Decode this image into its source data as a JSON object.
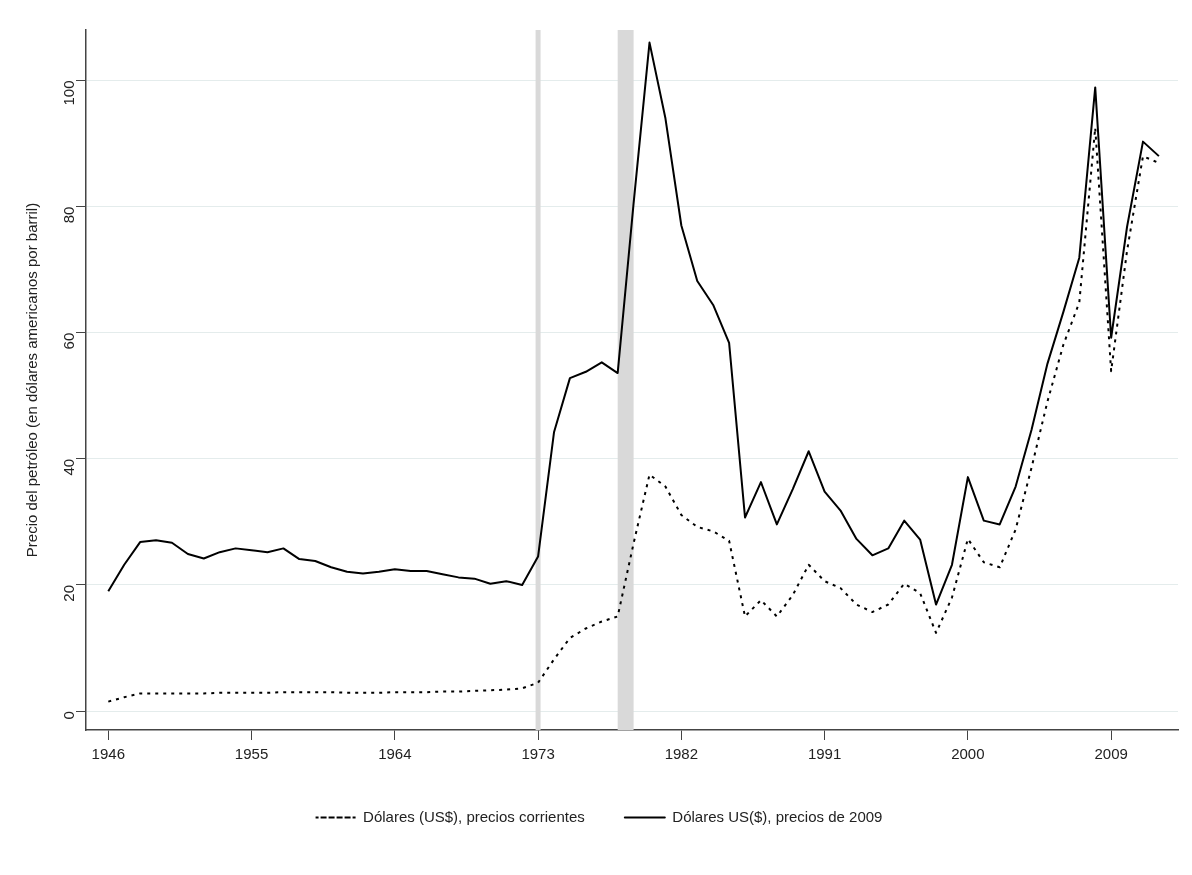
{
  "chart_data": {
    "type": "line",
    "ylabel": "Precio del petróleo (en dólares americanos por barril)",
    "x": [
      1946,
      1947,
      1948,
      1949,
      1950,
      1951,
      1952,
      1953,
      1954,
      1955,
      1956,
      1957,
      1958,
      1959,
      1960,
      1961,
      1962,
      1963,
      1964,
      1965,
      1966,
      1967,
      1968,
      1969,
      1970,
      1971,
      1972,
      1973,
      1974,
      1975,
      1976,
      1977,
      1978,
      1979,
      1980,
      1981,
      1982,
      1983,
      1984,
      1985,
      1986,
      1987,
      1988,
      1989,
      1990,
      1991,
      1992,
      1993,
      1994,
      1995,
      1996,
      1997,
      1998,
      1999,
      2000,
      2001,
      2002,
      2003,
      2004,
      2005,
      2006,
      2007,
      2008,
      2009,
      2010,
      2011,
      2012
    ],
    "series": [
      {
        "name": "Dólares (US$), precios corrientes",
        "color": "#000000",
        "line_style": "dotted",
        "values": [
          1.5,
          2.2,
          2.8,
          2.8,
          2.8,
          2.8,
          2.8,
          2.9,
          2.9,
          2.9,
          2.9,
          3.0,
          3.0,
          3.0,
          3.0,
          2.9,
          2.9,
          2.9,
          3.0,
          3.0,
          3.0,
          3.1,
          3.1,
          3.2,
          3.3,
          3.4,
          3.6,
          4.5,
          8.2,
          11.6,
          13.1,
          14.2,
          15.0,
          26.6,
          37.5,
          35.6,
          31.1,
          29.2,
          28.5,
          27.0,
          15.0,
          17.6,
          15.0,
          18.4,
          23.2,
          20.6,
          19.5,
          16.9,
          15.7,
          16.9,
          20.2,
          18.7,
          12.4,
          18.0,
          27.3,
          23.6,
          22.8,
          28.8,
          38.6,
          49.1,
          58.1,
          64.8,
          92.5,
          53.9,
          73.0,
          88.0,
          86.9
        ]
      },
      {
        "name": "Dólares US($), precios de 2009",
        "color": "#000000",
        "line_style": "solid",
        "values": [
          19.0,
          23.2,
          26.8,
          27.1,
          26.7,
          24.9,
          24.2,
          25.2,
          25.8,
          25.5,
          25.2,
          25.8,
          24.1,
          23.8,
          22.8,
          22.1,
          21.8,
          22.1,
          22.5,
          22.2,
          22.2,
          21.7,
          21.2,
          21.0,
          20.2,
          20.6,
          20.0,
          24.5,
          44.2,
          52.8,
          53.8,
          55.3,
          53.6,
          80.5,
          106.0,
          94.0,
          77.0,
          68.2,
          64.4,
          58.4,
          30.7,
          36.3,
          29.6,
          35.2,
          41.2,
          34.8,
          31.8,
          27.3,
          24.7,
          25.8,
          30.2,
          27.2,
          16.9,
          23.2,
          37.1,
          30.2,
          29.6,
          35.6,
          44.6,
          55.1,
          63.3,
          71.9,
          98.9,
          59.2,
          76.8,
          90.3,
          88.0
        ]
      }
    ],
    "xlim": [
      1944.6,
      2013.2
    ],
    "ylim": [
      -3,
      108
    ],
    "xticks": [
      1946,
      1955,
      1964,
      1973,
      1982,
      1991,
      2000,
      2009
    ],
    "yticks": [
      0,
      20,
      40,
      60,
      80,
      100
    ],
    "grid": "y",
    "legend": "bottom",
    "ref_lines": [
      {
        "axis": "x",
        "value": 1973,
        "color": "#d9d9d9"
      }
    ],
    "bands": [
      {
        "axis": "x",
        "from": 1978,
        "to": 1979,
        "color": "#d9d9d9"
      }
    ]
  }
}
